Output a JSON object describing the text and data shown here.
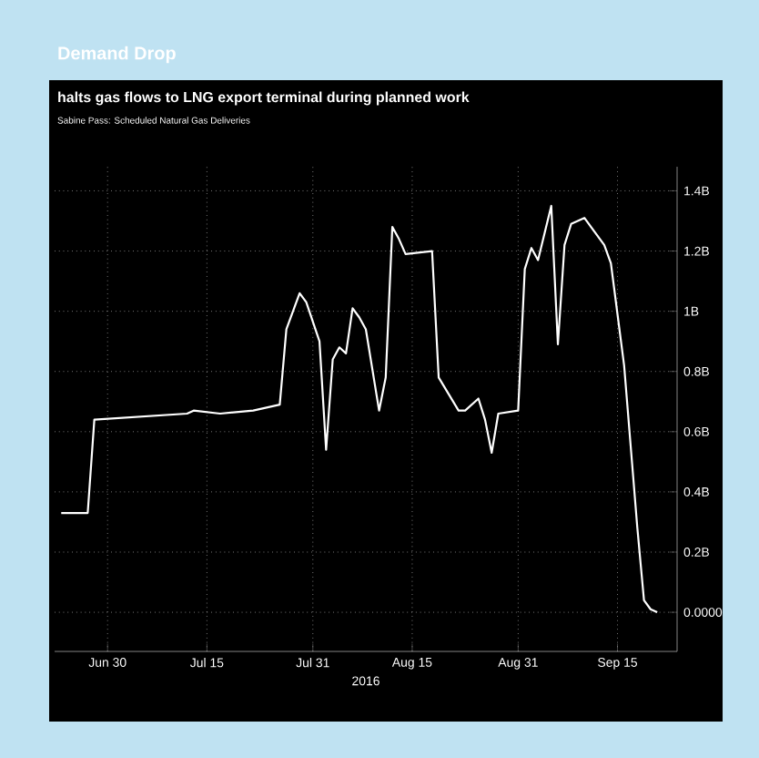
{
  "chart_data": {
    "type": "line",
    "title": "Demand Drop",
    "subtitle": "halts gas flows to LNG export terminal during planned work",
    "ylabel": "Sabine Pass: Scheduled Natural Gas Deliveries",
    "xlabel": "2016",
    "x": [
      "2016-06-23",
      "2016-06-27",
      "2016-06-28",
      "2016-07-12",
      "2016-07-13",
      "2016-07-17",
      "2016-07-22",
      "2016-07-26",
      "2016-07-27",
      "2016-07-29",
      "2016-07-30",
      "2016-08-01",
      "2016-08-02",
      "2016-08-03",
      "2016-08-04",
      "2016-08-05",
      "2016-08-06",
      "2016-08-07",
      "2016-08-08",
      "2016-08-10",
      "2016-08-11",
      "2016-08-12",
      "2016-08-13",
      "2016-08-14",
      "2016-08-18",
      "2016-08-19",
      "2016-08-22",
      "2016-08-23",
      "2016-08-25",
      "2016-08-26",
      "2016-08-27",
      "2016-08-28",
      "2016-08-31",
      "2016-09-01",
      "2016-09-02",
      "2016-09-03",
      "2016-09-05",
      "2016-09-06",
      "2016-09-07",
      "2016-09-08",
      "2016-09-10",
      "2016-09-13",
      "2016-09-14",
      "2016-09-16",
      "2016-09-18",
      "2016-09-19",
      "2016-09-20",
      "2016-09-21"
    ],
    "series": [
      {
        "color": "#ffffff",
        "values": [
          0.33,
          0.33,
          0.64,
          0.66,
          0.67,
          0.66,
          0.67,
          0.69,
          0.94,
          1.06,
          1.03,
          0.9,
          0.54,
          0.84,
          0.88,
          0.86,
          1.01,
          0.98,
          0.94,
          0.67,
          0.78,
          1.28,
          1.24,
          1.19,
          1.2,
          0.78,
          0.67,
          0.67,
          0.71,
          0.64,
          0.53,
          0.66,
          0.67,
          1.14,
          1.21,
          1.17,
          1.35,
          0.89,
          1.22,
          1.29,
          1.31,
          1.22,
          1.16,
          0.82,
          0.28,
          0.04,
          0.01,
          0.0
        ]
      }
    ],
    "xlim": [
      "2016-06-22",
      "2016-09-24"
    ],
    "ylim": [
      -0.13,
      1.48
    ],
    "xticks": [
      {
        "value": "2016-06-30",
        "label": "Jun 30"
      },
      {
        "value": "2016-07-15",
        "label": "Jul 15"
      },
      {
        "value": "2016-07-31",
        "label": "Jul 31"
      },
      {
        "value": "2016-08-15",
        "label": "Aug 15"
      },
      {
        "value": "2016-08-31",
        "label": "Aug 31"
      },
      {
        "value": "2016-09-15",
        "label": "Sep 15"
      }
    ],
    "yticks": [
      {
        "value": 0,
        "label": "0.0000"
      },
      {
        "value": 0.2,
        "label": "0.2B"
      },
      {
        "value": 0.4,
        "label": "0.4B"
      },
      {
        "value": 0.6,
        "label": "0.6B"
      },
      {
        "value": 0.8,
        "label": "0.8B"
      },
      {
        "value": 1,
        "label": "1B"
      },
      {
        "value": 1.2,
        "label": "1.2B"
      },
      {
        "value": 1.4,
        "label": "1.4B"
      }
    ],
    "grid": true
  }
}
